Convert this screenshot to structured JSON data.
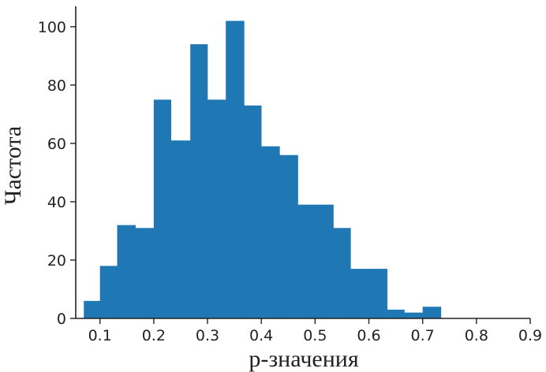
{
  "chart_data": {
    "type": "bar",
    "title": "",
    "xlabel": "p-значения",
    "ylabel": "Частота",
    "xlim": [
      0.055,
      0.9
    ],
    "ylim": [
      0,
      107
    ],
    "grid": false,
    "bar_color": "#1f77b4",
    "x_ticks": [
      0.1,
      0.2,
      0.3,
      0.4,
      0.5,
      0.6,
      0.7,
      0.8,
      0.9
    ],
    "y_ticks": [
      0,
      20,
      40,
      60,
      80,
      100
    ],
    "bins": [
      {
        "x0": 0.07,
        "x1": 0.1,
        "value": 6
      },
      {
        "x0": 0.1,
        "x1": 0.132,
        "value": 18
      },
      {
        "x0": 0.132,
        "x1": 0.166,
        "value": 32
      },
      {
        "x0": 0.166,
        "x1": 0.2,
        "value": 31
      },
      {
        "x0": 0.2,
        "x1": 0.232,
        "value": 75
      },
      {
        "x0": 0.232,
        "x1": 0.268,
        "value": 61
      },
      {
        "x0": 0.268,
        "x1": 0.3,
        "value": 94
      },
      {
        "x0": 0.3,
        "x1": 0.334,
        "value": 75
      },
      {
        "x0": 0.334,
        "x1": 0.368,
        "value": 102
      },
      {
        "x0": 0.368,
        "x1": 0.4,
        "value": 73
      },
      {
        "x0": 0.4,
        "x1": 0.434,
        "value": 59
      },
      {
        "x0": 0.434,
        "x1": 0.468,
        "value": 56
      },
      {
        "x0": 0.468,
        "x1": 0.5,
        "value": 39
      },
      {
        "x0": 0.5,
        "x1": 0.534,
        "value": 39
      },
      {
        "x0": 0.534,
        "x1": 0.566,
        "value": 31
      },
      {
        "x0": 0.566,
        "x1": 0.6,
        "value": 17
      },
      {
        "x0": 0.6,
        "x1": 0.634,
        "value": 17
      },
      {
        "x0": 0.634,
        "x1": 0.666,
        "value": 3
      },
      {
        "x0": 0.666,
        "x1": 0.7,
        "value": 2
      },
      {
        "x0": 0.7,
        "x1": 0.734,
        "value": 4
      }
    ]
  }
}
